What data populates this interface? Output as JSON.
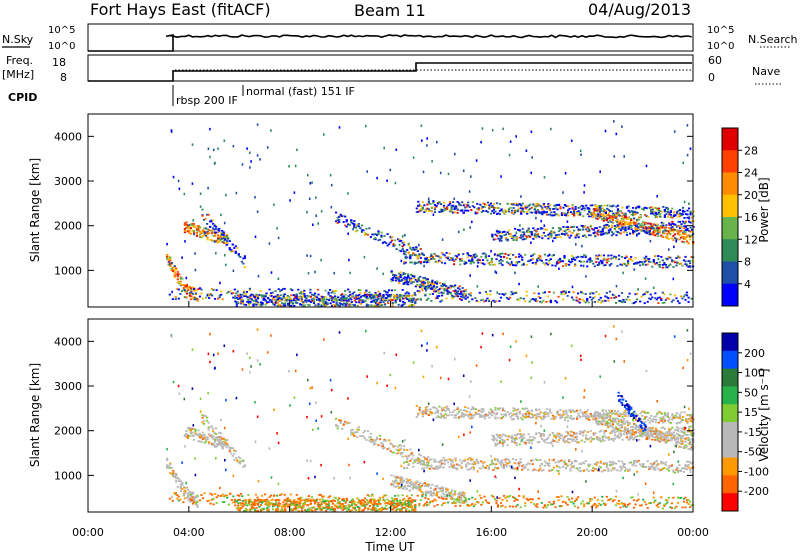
{
  "header": {
    "station": "Fort Hays East (fitACF)",
    "beam": "Beam 11",
    "date": "04/Aug/2013"
  },
  "top_panel": {
    "nsky_label": "N.Sky",
    "nsearch_label": "N.Search",
    "left_ticks": [
      "10^5",
      "10^0"
    ],
    "right_ticks": [
      "10^5",
      "10^0"
    ]
  },
  "freq_panel": {
    "freq_label": "Freq.",
    "freq_unit": "[MHz]",
    "nave_label": "Nave",
    "left_ticks": [
      "18",
      "8"
    ],
    "right_ticks": [
      "60",
      "0"
    ]
  },
  "cpid": {
    "label": "CPID",
    "mode1": "rbsp 200 IF",
    "mode2": "normal (fast) 151 IF"
  },
  "colors": {
    "power_scale": [
      "#0000ff",
      "#1f4fa8",
      "#2e8b57",
      "#69b34c",
      "#ffc000",
      "#ff8c00",
      "#ff4000",
      "#e00000"
    ],
    "velocity_scale": [
      "#ff0000",
      "#ff6400",
      "#ff9900",
      "#b8b8b8",
      "#b8b8b8",
      "#7fcc33",
      "#27b34a",
      "#2a7a3a",
      "#0050ff",
      "#0000aa"
    ]
  },
  "chart_data": [
    {
      "type": "heatmap",
      "name": "Power",
      "ylabel": "Slant Range [km]",
      "colorbar_label": "Power [dB]",
      "colorbar_ticks": [
        "4",
        "8",
        "12",
        "16",
        "20",
        "24",
        "28"
      ],
      "y_ticks": [
        "1000",
        "2000",
        "3000",
        "4000"
      ],
      "ylim": [
        180,
        4500
      ],
      "xlim": [
        "00:00",
        "24:00"
      ]
    },
    {
      "type": "heatmap",
      "name": "Velocity",
      "ylabel": "Slant Range [km]",
      "colorbar_label": "Velocity [m s⁻¹]",
      "colorbar_ticks": [
        "-200",
        "-100",
        "-50",
        "-15",
        "15",
        "50",
        "100",
        "200"
      ],
      "y_ticks": [
        "1000",
        "2000",
        "3000",
        "4000"
      ],
      "ylim": [
        180,
        4500
      ],
      "x_ticks": [
        "00:00",
        "04:00",
        "08:00",
        "12:00",
        "16:00",
        "20:00",
        "00:00"
      ],
      "xlabel": "Time UT"
    }
  ]
}
